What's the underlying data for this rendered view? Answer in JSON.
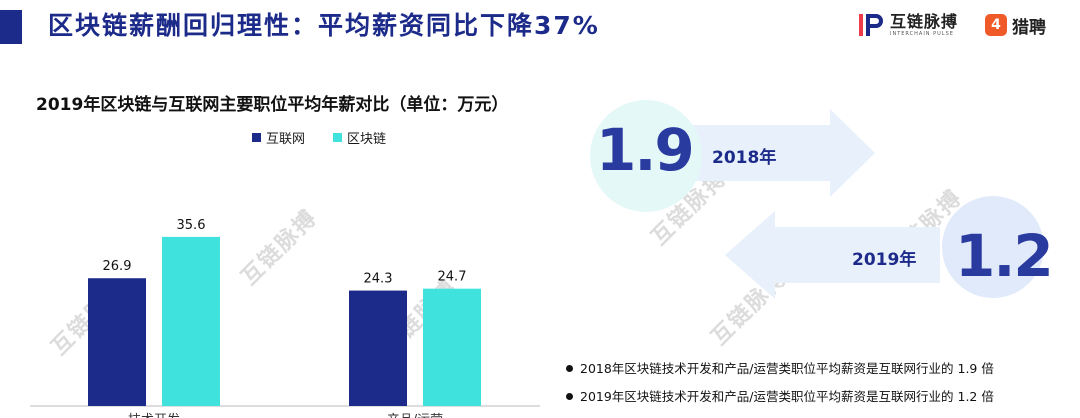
{
  "header": {
    "title": "区块链薪酬回归理性：平均薪资同比下降37%",
    "brand1_name": "互链脉搏",
    "brand1_sub": "INTERCHAIN PULSE",
    "brand2_icon": "4",
    "brand2_name": "猎聘"
  },
  "watermark_text": "互链脉搏",
  "chart_data": {
    "type": "bar",
    "title": "2019年区块链与互联网主要职位平均年薪对比（单位：万元）",
    "categories": [
      "技术开发",
      "产品/运营"
    ],
    "series": [
      {
        "name": "互联网",
        "values": [
          26.9,
          24.3
        ],
        "color": "#1c2a8a"
      },
      {
        "name": "区块链",
        "values": [
          35.6,
          24.7
        ],
        "color": "#3fe2dc"
      }
    ],
    "ylim": [
      0,
      40
    ],
    "grid": false,
    "legend": "top"
  },
  "comparison": {
    "ratio_2018": "1.9",
    "year_2018": "2018年",
    "ratio_2019": "1.2",
    "year_2019": "2019年"
  },
  "notes": [
    "2018年区块链技术开发和产品/运营类职位平均薪资是互联网行业的 1.9 倍",
    "2019年区块链技术开发和产品/运营类职位平均薪资是互联网行业的 1.2 倍"
  ],
  "colors": {
    "navy": "#1c2a8a",
    "cyan": "#3fe2dc",
    "arrow": "#e8f0fb"
  }
}
